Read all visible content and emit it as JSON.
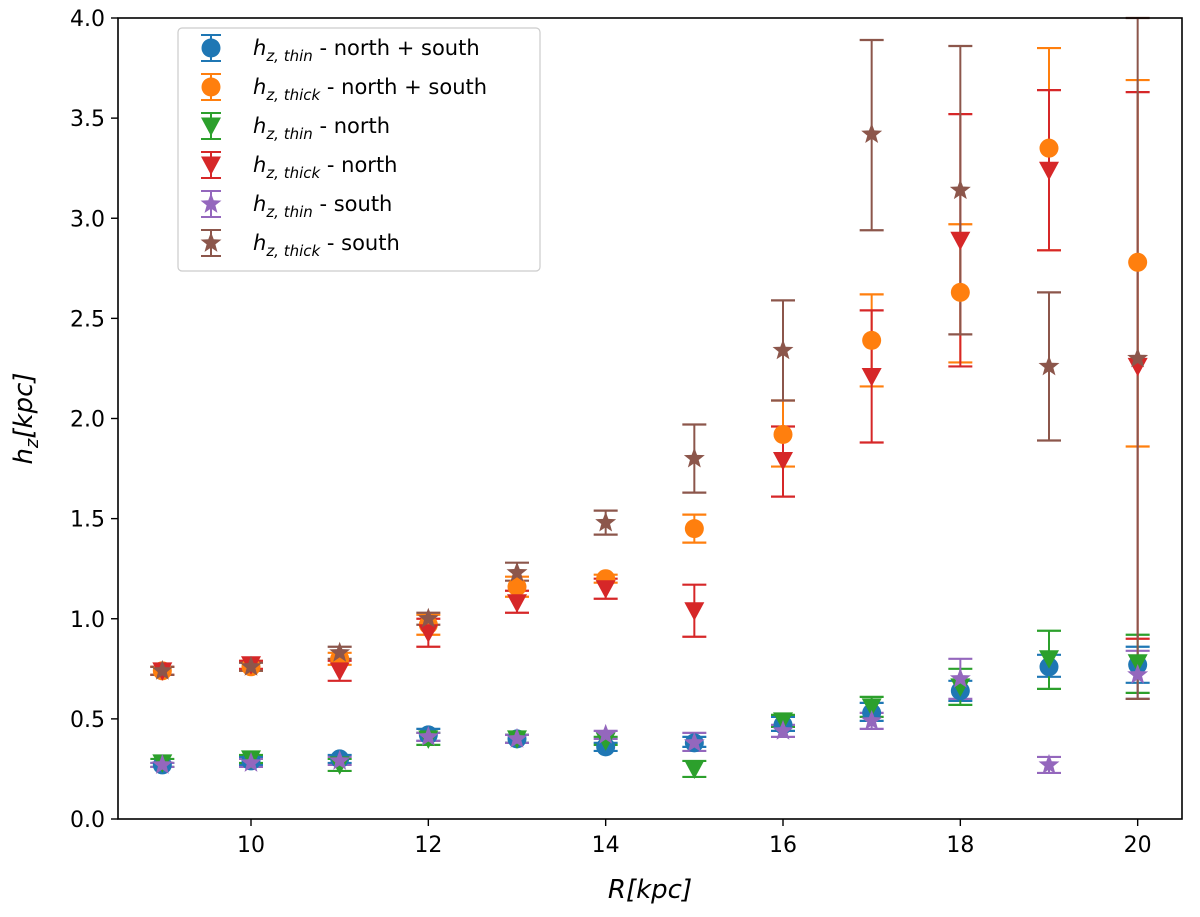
{
  "chart_data": {
    "type": "scatter",
    "xlabel": "R[kpc]",
    "ylabel": "h_z[kpc]",
    "xlim": [
      8.5,
      20.5
    ],
    "ylim": [
      0.0,
      4.0
    ],
    "xticks": [
      "10",
      "12",
      "14",
      "16",
      "18",
      "20"
    ],
    "yticks": [
      "0.0",
      "0.5",
      "1.0",
      "1.5",
      "2.0",
      "2.5",
      "3.0",
      "3.5",
      "4.0"
    ],
    "grid": false,
    "legend_position": "top-left",
    "series": [
      {
        "name": "h_{z,thin} -  north + south",
        "legend_main": "h",
        "legend_sub": "z, thin",
        "legend_rest": " -  north + south",
        "marker": "circle",
        "color": "#1f77b4",
        "points": [
          {
            "x": 9,
            "y": 0.27,
            "lo": 0.26,
            "hi": 0.28
          },
          {
            "x": 10,
            "y": 0.29,
            "lo": 0.27,
            "hi": 0.31
          },
          {
            "x": 11,
            "y": 0.3,
            "lo": 0.28,
            "hi": 0.32
          },
          {
            "x": 12,
            "y": 0.42,
            "lo": 0.39,
            "hi": 0.45
          },
          {
            "x": 13,
            "y": 0.4,
            "lo": 0.38,
            "hi": 0.42
          },
          {
            "x": 14,
            "y": 0.36,
            "lo": 0.34,
            "hi": 0.38
          },
          {
            "x": 15,
            "y": 0.38,
            "lo": 0.36,
            "hi": 0.41
          },
          {
            "x": 16,
            "y": 0.47,
            "lo": 0.44,
            "hi": 0.51
          },
          {
            "x": 17,
            "y": 0.53,
            "lo": 0.49,
            "hi": 0.58
          },
          {
            "x": 18,
            "y": 0.64,
            "lo": 0.59,
            "hi": 0.69
          },
          {
            "x": 19,
            "y": 0.76,
            "lo": 0.71,
            "hi": 0.82
          },
          {
            "x": 20,
            "y": 0.77,
            "lo": 0.68,
            "hi": 0.86
          }
        ]
      },
      {
        "name": "h_{z,thick} -  north + south",
        "legend_main": "h",
        "legend_sub": "z, thick",
        "legend_rest": " -  north + south",
        "marker": "circle",
        "color": "#ff7f0e",
        "points": [
          {
            "x": 9,
            "y": 0.74,
            "lo": 0.72,
            "hi": 0.76
          },
          {
            "x": 10,
            "y": 0.76,
            "lo": 0.74,
            "hi": 0.79
          },
          {
            "x": 11,
            "y": 0.8,
            "lo": 0.77,
            "hi": 0.83
          },
          {
            "x": 12,
            "y": 0.97,
            "lo": 0.92,
            "hi": 1.02
          },
          {
            "x": 13,
            "y": 1.16,
            "lo": 1.11,
            "hi": 1.21
          },
          {
            "x": 14,
            "y": 1.2,
            "lo": 1.18,
            "hi": 1.22
          },
          {
            "x": 15,
            "y": 1.45,
            "lo": 1.38,
            "hi": 1.52
          },
          {
            "x": 16,
            "y": 1.92,
            "lo": 1.76,
            "hi": 2.09
          },
          {
            "x": 17,
            "y": 2.39,
            "lo": 2.16,
            "hi": 2.62
          },
          {
            "x": 18,
            "y": 2.63,
            "lo": 2.28,
            "hi": 2.97
          },
          {
            "x": 19,
            "y": 3.35,
            "lo": 2.84,
            "hi": 3.85
          },
          {
            "x": 20,
            "y": 2.78,
            "lo": 1.86,
            "hi": 3.69
          }
        ]
      },
      {
        "name": "h_{z,thin} - north",
        "legend_main": "h",
        "legend_sub": "z, thin",
        "legend_rest": " - north",
        "marker": "triangle-down",
        "color": "#2ca02c",
        "points": [
          {
            "x": 9,
            "y": 0.28,
            "lo": 0.26,
            "hi": 0.3
          },
          {
            "x": 10,
            "y": 0.3,
            "lo": 0.28,
            "hi": 0.32
          },
          {
            "x": 11,
            "y": 0.27,
            "lo": 0.24,
            "hi": 0.3
          },
          {
            "x": 12,
            "y": 0.4,
            "lo": 0.37,
            "hi": 0.43
          },
          {
            "x": 13,
            "y": 0.4,
            "lo": 0.38,
            "hi": 0.42
          },
          {
            "x": 14,
            "y": 0.39,
            "lo": 0.37,
            "hi": 0.41
          },
          {
            "x": 15,
            "y": 0.25,
            "lo": 0.21,
            "hi": 0.29
          },
          {
            "x": 16,
            "y": 0.49,
            "lo": 0.46,
            "hi": 0.52
          },
          {
            "x": 17,
            "y": 0.56,
            "lo": 0.51,
            "hi": 0.61
          },
          {
            "x": 18,
            "y": 0.66,
            "lo": 0.57,
            "hi": 0.75
          },
          {
            "x": 19,
            "y": 0.8,
            "lo": 0.65,
            "hi": 0.94
          },
          {
            "x": 20,
            "y": 0.78,
            "lo": 0.63,
            "hi": 0.92
          }
        ]
      },
      {
        "name": "h_{z,thick} - north",
        "legend_main": "h",
        "legend_sub": "z, thick",
        "legend_rest": " - north",
        "marker": "triangle-down",
        "color": "#d62728",
        "points": [
          {
            "x": 9,
            "y": 0.74,
            "lo": 0.72,
            "hi": 0.76
          },
          {
            "x": 10,
            "y": 0.77,
            "lo": 0.75,
            "hi": 0.79
          },
          {
            "x": 11,
            "y": 0.74,
            "lo": 0.69,
            "hi": 0.79
          },
          {
            "x": 12,
            "y": 0.93,
            "lo": 0.86,
            "hi": 1.0
          },
          {
            "x": 13,
            "y": 1.08,
            "lo": 1.03,
            "hi": 1.14
          },
          {
            "x": 14,
            "y": 1.15,
            "lo": 1.1,
            "hi": 1.2
          },
          {
            "x": 15,
            "y": 1.04,
            "lo": 0.91,
            "hi": 1.17
          },
          {
            "x": 16,
            "y": 1.79,
            "lo": 1.61,
            "hi": 1.96
          },
          {
            "x": 17,
            "y": 2.21,
            "lo": 1.88,
            "hi": 2.54
          },
          {
            "x": 18,
            "y": 2.89,
            "lo": 2.26,
            "hi": 3.52
          },
          {
            "x": 19,
            "y": 3.24,
            "lo": 2.84,
            "hi": 3.64
          },
          {
            "x": 20,
            "y": 2.26,
            "lo": 0.9,
            "hi": 3.63
          }
        ]
      },
      {
        "name": "h_{z,thin} - south",
        "legend_main": "h",
        "legend_sub": "z, thin",
        "legend_rest": " - south",
        "marker": "star",
        "color": "#9467bd",
        "points": [
          {
            "x": 9,
            "y": 0.27,
            "lo": 0.26,
            "hi": 0.28
          },
          {
            "x": 10,
            "y": 0.28,
            "lo": 0.26,
            "hi": 0.3
          },
          {
            "x": 11,
            "y": 0.29,
            "lo": 0.27,
            "hi": 0.31
          },
          {
            "x": 12,
            "y": 0.41,
            "lo": 0.39,
            "hi": 0.43
          },
          {
            "x": 13,
            "y": 0.4,
            "lo": 0.38,
            "hi": 0.42
          },
          {
            "x": 14,
            "y": 0.42,
            "lo": 0.4,
            "hi": 0.44
          },
          {
            "x": 15,
            "y": 0.38,
            "lo": 0.34,
            "hi": 0.43
          },
          {
            "x": 16,
            "y": 0.44,
            "lo": 0.41,
            "hi": 0.47
          },
          {
            "x": 17,
            "y": 0.49,
            "lo": 0.45,
            "hi": 0.53
          },
          {
            "x": 18,
            "y": 0.7,
            "lo": 0.6,
            "hi": 0.8
          },
          {
            "x": 19,
            "y": 0.27,
            "lo": 0.23,
            "hi": 0.31
          },
          {
            "x": 20,
            "y": 0.72,
            "lo": 0.6,
            "hi": 0.84
          }
        ]
      },
      {
        "name": "h_{z,thick} - south",
        "legend_main": "h",
        "legend_sub": "z, thick",
        "legend_rest": " - south",
        "marker": "star",
        "color": "#8c564b",
        "points": [
          {
            "x": 9,
            "y": 0.74,
            "lo": 0.72,
            "hi": 0.76
          },
          {
            "x": 10,
            "y": 0.76,
            "lo": 0.74,
            "hi": 0.78
          },
          {
            "x": 11,
            "y": 0.83,
            "lo": 0.8,
            "hi": 0.86
          },
          {
            "x": 12,
            "y": 1.0,
            "lo": 0.97,
            "hi": 1.03
          },
          {
            "x": 13,
            "y": 1.23,
            "lo": 1.19,
            "hi": 1.28
          },
          {
            "x": 14,
            "y": 1.48,
            "lo": 1.42,
            "hi": 1.54
          },
          {
            "x": 15,
            "y": 1.8,
            "lo": 1.63,
            "hi": 1.97
          },
          {
            "x": 16,
            "y": 2.34,
            "lo": 2.09,
            "hi": 2.59
          },
          {
            "x": 17,
            "y": 3.42,
            "lo": 2.94,
            "hi": 3.89
          },
          {
            "x": 18,
            "y": 3.14,
            "lo": 2.42,
            "hi": 3.86
          },
          {
            "x": 19,
            "y": 2.26,
            "lo": 1.89,
            "hi": 2.63
          },
          {
            "x": 20,
            "y": 2.3,
            "lo": 0.6,
            "hi": 4.0
          }
        ]
      }
    ]
  }
}
